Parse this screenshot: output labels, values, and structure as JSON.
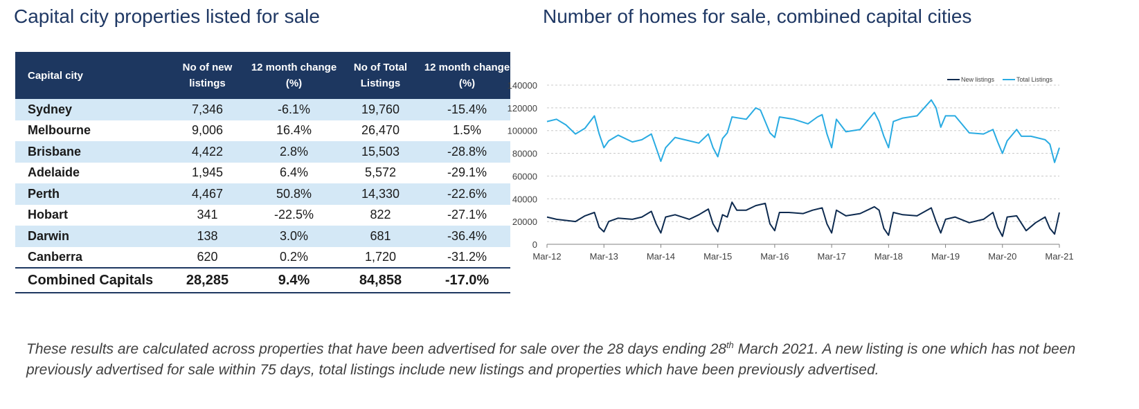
{
  "left_title": "Capital city properties listed for sale",
  "right_title": "Number of homes for sale, combined capital cities",
  "table": {
    "headers": {
      "city": "Capital city",
      "new_listings": "No of new listings",
      "new_change": "12 month change (%)",
      "total_listings": "No of Total Listings",
      "total_change": "12 month change (%)"
    },
    "rows": [
      {
        "city": "Sydney",
        "new": "7,346",
        "new_change": "-6.1%",
        "total": "19,760",
        "total_change": "-15.4%"
      },
      {
        "city": "Melbourne",
        "new": "9,006",
        "new_change": "16.4%",
        "total": "26,470",
        "total_change": "1.5%"
      },
      {
        "city": "Brisbane",
        "new": "4,422",
        "new_change": "2.8%",
        "total": "15,503",
        "total_change": "-28.8%"
      },
      {
        "city": "Adelaide",
        "new": "1,945",
        "new_change": "6.4%",
        "total": "5,572",
        "total_change": "-29.1%"
      },
      {
        "city": "Perth",
        "new": "4,467",
        "new_change": "50.8%",
        "total": "14,330",
        "total_change": "-22.6%"
      },
      {
        "city": "Hobart",
        "new": "341",
        "new_change": "-22.5%",
        "total": "822",
        "total_change": "-27.1%"
      },
      {
        "city": "Darwin",
        "new": "138",
        "new_change": "3.0%",
        "total": "681",
        "total_change": "-36.4%"
      },
      {
        "city": "Canberra",
        "new": "620",
        "new_change": "0.2%",
        "total": "1,720",
        "total_change": "-31.2%"
      }
    ],
    "total": {
      "city": "Combined Capitals",
      "new": "28,285",
      "new_change": "9.4%",
      "total": "84,858",
      "total_change": "-17.0%"
    }
  },
  "footnote": {
    "part1": "These results are calculated across properties that have been advertised for sale over the 28 days ending 28",
    "sup": "th",
    "part2": " March 2021.  A new listing is one which has not been previously advertised for sale within 75 days, total listings include new listings and properties which have been previously advertised."
  },
  "colors": {
    "header_bg": "#1d3760",
    "row_shade": "#d4e8f6",
    "title": "#1f3864",
    "new_listings": "#0d2a4f",
    "total_listings": "#29abe2"
  },
  "chart_data": {
    "type": "line",
    "x_type": "date",
    "x_ticks": [
      "Mar-12",
      "Mar-13",
      "Mar-14",
      "Mar-15",
      "Mar-16",
      "Mar-17",
      "Mar-18",
      "Mar-19",
      "Mar-20",
      "Mar-21"
    ],
    "xlim": [
      "2012-03",
      "2021-03"
    ],
    "ylim": [
      0,
      140000
    ],
    "y_ticks": [
      0,
      20000,
      40000,
      60000,
      80000,
      100000,
      120000,
      140000
    ],
    "grid": "horizontal dashed",
    "legend_position": "top-right",
    "series": [
      {
        "name": "New listings",
        "color": "#0d2a4f",
        "points": [
          [
            "2012-03",
            24000
          ],
          [
            "2012-05",
            22000
          ],
          [
            "2012-07",
            21000
          ],
          [
            "2012-09",
            20000
          ],
          [
            "2012-11",
            25000
          ],
          [
            "2013-01",
            28000
          ],
          [
            "2013-02",
            15000
          ],
          [
            "2013-03",
            11000
          ],
          [
            "2013-04",
            20000
          ],
          [
            "2013-06",
            23000
          ],
          [
            "2013-09",
            22000
          ],
          [
            "2013-11",
            24000
          ],
          [
            "2014-01",
            29000
          ],
          [
            "2014-02",
            18000
          ],
          [
            "2014-03",
            10000
          ],
          [
            "2014-04",
            24000
          ],
          [
            "2014-06",
            26000
          ],
          [
            "2014-09",
            22000
          ],
          [
            "2014-11",
            26000
          ],
          [
            "2015-01",
            31000
          ],
          [
            "2015-02",
            18000
          ],
          [
            "2015-03",
            11000
          ],
          [
            "2015-04",
            26000
          ],
          [
            "2015-05",
            24000
          ],
          [
            "2015-06",
            37000
          ],
          [
            "2015-07",
            30000
          ],
          [
            "2015-09",
            30000
          ],
          [
            "2015-11",
            34000
          ],
          [
            "2016-01",
            36000
          ],
          [
            "2016-02",
            18000
          ],
          [
            "2016-03",
            12000
          ],
          [
            "2016-04",
            28000
          ],
          [
            "2016-06",
            28000
          ],
          [
            "2016-09",
            27000
          ],
          [
            "2016-11",
            30000
          ],
          [
            "2017-01",
            32000
          ],
          [
            "2017-02",
            18000
          ],
          [
            "2017-03",
            10000
          ],
          [
            "2017-04",
            30000
          ],
          [
            "2017-06",
            25000
          ],
          [
            "2017-09",
            27000
          ],
          [
            "2017-12",
            33000
          ],
          [
            "2018-01",
            30000
          ],
          [
            "2018-02",
            14000
          ],
          [
            "2018-03",
            8000
          ],
          [
            "2018-04",
            28000
          ],
          [
            "2018-06",
            26000
          ],
          [
            "2018-09",
            25000
          ],
          [
            "2018-12",
            32000
          ],
          [
            "2019-01",
            20000
          ],
          [
            "2019-02",
            10000
          ],
          [
            "2019-03",
            22000
          ],
          [
            "2019-05",
            24000
          ],
          [
            "2019-08",
            19000
          ],
          [
            "2019-11",
            22000
          ],
          [
            "2020-01",
            28000
          ],
          [
            "2020-02",
            15000
          ],
          [
            "2020-03",
            7000
          ],
          [
            "2020-04",
            24000
          ],
          [
            "2020-06",
            25000
          ],
          [
            "2020-08",
            12000
          ],
          [
            "2020-10",
            19000
          ],
          [
            "2020-12",
            24000
          ],
          [
            "2021-01",
            14000
          ],
          [
            "2021-02",
            9000
          ],
          [
            "2021-03",
            28000
          ]
        ]
      },
      {
        "name": "Total Listings",
        "color": "#29abe2",
        "points": [
          [
            "2012-03",
            108000
          ],
          [
            "2012-05",
            110000
          ],
          [
            "2012-07",
            105000
          ],
          [
            "2012-09",
            97000
          ],
          [
            "2012-11",
            102000
          ],
          [
            "2013-01",
            113000
          ],
          [
            "2013-02",
            97000
          ],
          [
            "2013-03",
            85000
          ],
          [
            "2013-04",
            91000
          ],
          [
            "2013-06",
            96000
          ],
          [
            "2013-09",
            90000
          ],
          [
            "2013-11",
            92000
          ],
          [
            "2014-01",
            97000
          ],
          [
            "2014-02",
            85000
          ],
          [
            "2014-03",
            73000
          ],
          [
            "2014-04",
            85000
          ],
          [
            "2014-06",
            94000
          ],
          [
            "2014-09",
            91000
          ],
          [
            "2014-11",
            89000
          ],
          [
            "2015-01",
            97000
          ],
          [
            "2015-02",
            85000
          ],
          [
            "2015-03",
            77000
          ],
          [
            "2015-04",
            93000
          ],
          [
            "2015-05",
            98000
          ],
          [
            "2015-06",
            112000
          ],
          [
            "2015-09",
            110000
          ],
          [
            "2015-11",
            120000
          ],
          [
            "2015-12",
            118000
          ],
          [
            "2016-02",
            98000
          ],
          [
            "2016-03",
            94000
          ],
          [
            "2016-04",
            112000
          ],
          [
            "2016-07",
            110000
          ],
          [
            "2016-10",
            106000
          ],
          [
            "2016-12",
            112000
          ],
          [
            "2017-01",
            114000
          ],
          [
            "2017-02",
            97000
          ],
          [
            "2017-03",
            85000
          ],
          [
            "2017-04",
            110000
          ],
          [
            "2017-06",
            99000
          ],
          [
            "2017-09",
            101000
          ],
          [
            "2017-12",
            116000
          ],
          [
            "2018-01",
            108000
          ],
          [
            "2018-02",
            95000
          ],
          [
            "2018-03",
            85000
          ],
          [
            "2018-04",
            108000
          ],
          [
            "2018-06",
            111000
          ],
          [
            "2018-09",
            113000
          ],
          [
            "2018-12",
            127000
          ],
          [
            "2019-01",
            120000
          ],
          [
            "2019-02",
            103000
          ],
          [
            "2019-03",
            113000
          ],
          [
            "2019-05",
            113000
          ],
          [
            "2019-08",
            98000
          ],
          [
            "2019-11",
            97000
          ],
          [
            "2020-01",
            101000
          ],
          [
            "2020-02",
            90000
          ],
          [
            "2020-03",
            80000
          ],
          [
            "2020-04",
            91000
          ],
          [
            "2020-06",
            101000
          ],
          [
            "2020-07",
            95000
          ],
          [
            "2020-09",
            95000
          ],
          [
            "2020-12",
            92000
          ],
          [
            "2021-01",
            88000
          ],
          [
            "2021-02",
            72000
          ],
          [
            "2021-03",
            85000
          ]
        ]
      }
    ]
  }
}
